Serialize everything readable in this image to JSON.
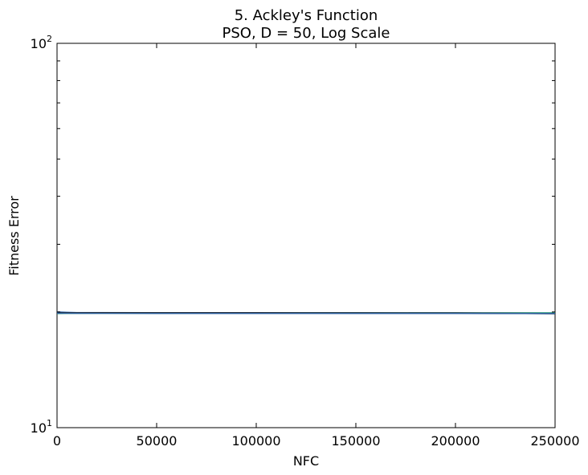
{
  "chart_data": {
    "type": "line",
    "title_lines": [
      "5.   Ackley's Function",
      "PSO, D = 50, Log Scale"
    ],
    "xlabel": "NFC",
    "ylabel": "Fitness Error",
    "xlim": [
      0,
      250000
    ],
    "ylim": [
      10,
      100
    ],
    "yscale": "log",
    "grid": false,
    "legend": "none",
    "x_ticks": [
      {
        "value": 0,
        "label": "0"
      },
      {
        "value": 50000,
        "label": "50000"
      },
      {
        "value": 100000,
        "label": "100000"
      },
      {
        "value": 150000,
        "label": "150000"
      },
      {
        "value": 200000,
        "label": "200000"
      },
      {
        "value": 250000,
        "label": "250000"
      }
    ],
    "y_ticks": [
      {
        "value": 10,
        "base": "10",
        "exp": "1"
      },
      {
        "value": 100,
        "base": "10",
        "exp": "2"
      }
    ],
    "series": [
      {
        "color": "#3b6fb6",
        "x": [
          0,
          5000,
          10000,
          50000,
          100000,
          150000,
          200000,
          250000
        ],
        "y": [
          20.0,
          19.95,
          19.92,
          19.9,
          19.88,
          19.86,
          19.85,
          19.84
        ]
      },
      {
        "color": "#2a8a7a",
        "x": [
          0,
          5000,
          10000,
          50000,
          100000,
          150000,
          200000,
          250000
        ],
        "y": [
          19.88,
          19.86,
          19.86,
          19.87,
          19.88,
          19.88,
          19.87,
          19.87
        ]
      },
      {
        "color": "#1f9e6a",
        "x": [
          0,
          5000,
          10000,
          50000,
          100000,
          150000,
          200000,
          250000
        ],
        "y": [
          19.82,
          19.84,
          19.85,
          19.86,
          19.87,
          19.88,
          19.88,
          19.88
        ]
      },
      {
        "color": "#1a1a1a",
        "x": [
          0,
          5000,
          10000,
          50000,
          100000,
          150000,
          200000,
          250000
        ],
        "y": [
          19.92,
          19.91,
          19.91,
          19.91,
          19.9,
          19.89,
          19.88,
          19.8
        ]
      },
      {
        "color": "#2c5f9e",
        "x": [
          0,
          5000,
          10000,
          50000,
          100000,
          150000,
          200000,
          250000
        ],
        "y": [
          19.86,
          19.85,
          19.84,
          19.83,
          19.83,
          19.83,
          19.83,
          19.82
        ]
      }
    ]
  }
}
